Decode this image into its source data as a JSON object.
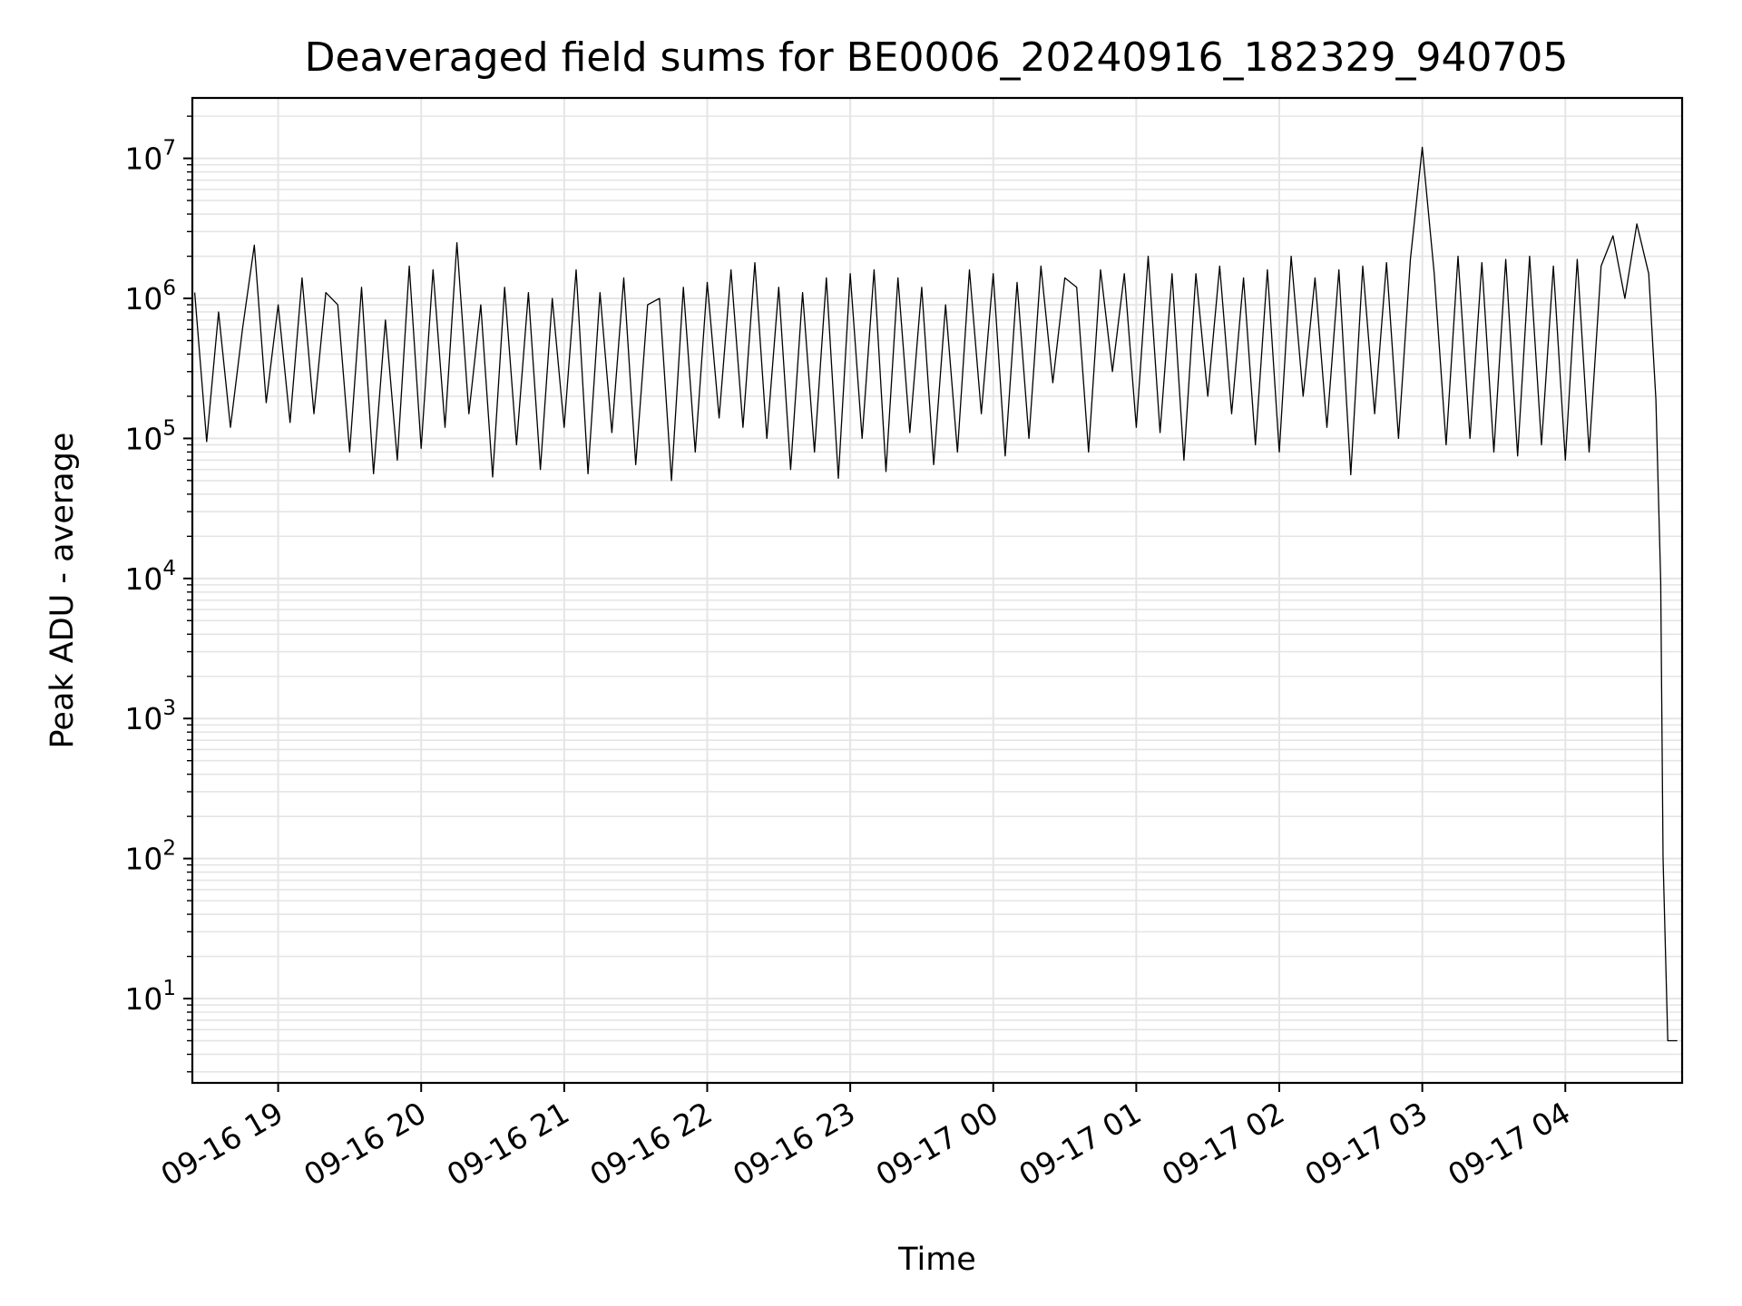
{
  "chart_data": {
    "type": "line",
    "title": "Deaveraged field sums for BE0006_20240916_182329_940705",
    "xlabel": "Time",
    "ylabel": "Peak ADU - average",
    "yscale": "log",
    "ylim": [
      2.5,
      27000000
    ],
    "xlim": [
      "2024-09-16 18:24",
      "2024-09-17 04:49"
    ],
    "grid": true,
    "line_color": "#000000",
    "grid_color": "#e5e5e5",
    "x_ticks": [
      "09-16 19",
      "09-16 20",
      "09-16 21",
      "09-16 22",
      "09-16 23",
      "09-17 00",
      "09-17 01",
      "09-17 02",
      "09-17 03",
      "09-17 04"
    ],
    "y_ticks": [
      {
        "base": "10",
        "exp": "1"
      },
      {
        "base": "10",
        "exp": "2"
      },
      {
        "base": "10",
        "exp": "3"
      },
      {
        "base": "10",
        "exp": "4"
      },
      {
        "base": "10",
        "exp": "5"
      },
      {
        "base": "10",
        "exp": "6"
      },
      {
        "base": "10",
        "exp": "7"
      }
    ],
    "series": [
      {
        "x": [
          "2024-09-16 18:25",
          "2024-09-16 18:30",
          "2024-09-16 18:35",
          "2024-09-16 18:40",
          "2024-09-16 18:45",
          "2024-09-16 18:50",
          "2024-09-16 18:55",
          "2024-09-16 19:00",
          "2024-09-16 19:05",
          "2024-09-16 19:10",
          "2024-09-16 19:15",
          "2024-09-16 19:20",
          "2024-09-16 19:25",
          "2024-09-16 19:30",
          "2024-09-16 19:35",
          "2024-09-16 19:40",
          "2024-09-16 19:45",
          "2024-09-16 19:50",
          "2024-09-16 19:55",
          "2024-09-16 20:00",
          "2024-09-16 20:05",
          "2024-09-16 20:10",
          "2024-09-16 20:15",
          "2024-09-16 20:20",
          "2024-09-16 20:25",
          "2024-09-16 20:30",
          "2024-09-16 20:35",
          "2024-09-16 20:40",
          "2024-09-16 20:45",
          "2024-09-16 20:50",
          "2024-09-16 20:55",
          "2024-09-16 21:00",
          "2024-09-16 21:05",
          "2024-09-16 21:10",
          "2024-09-16 21:15",
          "2024-09-16 21:20",
          "2024-09-16 21:25",
          "2024-09-16 21:30",
          "2024-09-16 21:35",
          "2024-09-16 21:40",
          "2024-09-16 21:45",
          "2024-09-16 21:50",
          "2024-09-16 21:55",
          "2024-09-16 22:00",
          "2024-09-16 22:05",
          "2024-09-16 22:10",
          "2024-09-16 22:15",
          "2024-09-16 22:20",
          "2024-09-16 22:25",
          "2024-09-16 22:30",
          "2024-09-16 22:35",
          "2024-09-16 22:40",
          "2024-09-16 22:45",
          "2024-09-16 22:50",
          "2024-09-16 22:55",
          "2024-09-16 23:00",
          "2024-09-16 23:05",
          "2024-09-16 23:10",
          "2024-09-16 23:15",
          "2024-09-16 23:20",
          "2024-09-16 23:25",
          "2024-09-16 23:30",
          "2024-09-16 23:35",
          "2024-09-16 23:40",
          "2024-09-16 23:45",
          "2024-09-16 23:50",
          "2024-09-16 23:55",
          "2024-09-17 00:00",
          "2024-09-17 00:05",
          "2024-09-17 00:10",
          "2024-09-17 00:15",
          "2024-09-17 00:20",
          "2024-09-17 00:25",
          "2024-09-17 00:30",
          "2024-09-17 00:35",
          "2024-09-17 00:40",
          "2024-09-17 00:45",
          "2024-09-17 00:50",
          "2024-09-17 00:55",
          "2024-09-17 01:00",
          "2024-09-17 01:05",
          "2024-09-17 01:10",
          "2024-09-17 01:15",
          "2024-09-17 01:20",
          "2024-09-17 01:25",
          "2024-09-17 01:30",
          "2024-09-17 01:35",
          "2024-09-17 01:40",
          "2024-09-17 01:45",
          "2024-09-17 01:50",
          "2024-09-17 01:55",
          "2024-09-17 02:00",
          "2024-09-17 02:05",
          "2024-09-17 02:10",
          "2024-09-17 02:15",
          "2024-09-17 02:20",
          "2024-09-17 02:25",
          "2024-09-17 02:30",
          "2024-09-17 02:35",
          "2024-09-17 02:40",
          "2024-09-17 02:45",
          "2024-09-17 02:50",
          "2024-09-17 02:55",
          "2024-09-17 03:00",
          "2024-09-17 03:05",
          "2024-09-17 03:10",
          "2024-09-17 03:15",
          "2024-09-17 03:20",
          "2024-09-17 03:25",
          "2024-09-17 03:30",
          "2024-09-17 03:35",
          "2024-09-17 03:40",
          "2024-09-17 03:45",
          "2024-09-17 03:50",
          "2024-09-17 03:55",
          "2024-09-17 04:00",
          "2024-09-17 04:05",
          "2024-09-17 04:10",
          "2024-09-17 04:15",
          "2024-09-17 04:20",
          "2024-09-17 04:25",
          "2024-09-17 04:30",
          "2024-09-17 04:35",
          "2024-09-17 04:38",
          "2024-09-17 04:40",
          "2024-09-17 04:41",
          "2024-09-17 04:43",
          "2024-09-17 04:45",
          "2024-09-17 04:47"
        ],
        "values": [
          1100000,
          95000,
          800000,
          120000,
          600000,
          2400000,
          180000,
          900000,
          130000,
          1400000,
          150000,
          1100000,
          900000,
          80000,
          1200000,
          56000,
          700000,
          70000,
          1700000,
          85000,
          1600000,
          120000,
          2500000,
          150000,
          900000,
          53000,
          1200000,
          90000,
          1100000,
          60000,
          1000000,
          120000,
          1600000,
          56000,
          1100000,
          110000,
          1400000,
          65000,
          900000,
          1000000,
          50000,
          1200000,
          80000,
          1300000,
          140000,
          1600000,
          120000,
          1800000,
          100000,
          1200000,
          60000,
          1100000,
          80000,
          1400000,
          52000,
          1500000,
          100000,
          1600000,
          58000,
          1400000,
          110000,
          1200000,
          65000,
          900000,
          80000,
          1600000,
          150000,
          1500000,
          75000,
          1300000,
          100000,
          1700000,
          250000,
          1400000,
          1200000,
          80000,
          1600000,
          300000,
          1500000,
          120000,
          2000000,
          110000,
          1500000,
          70000,
          1500000,
          200000,
          1700000,
          150000,
          1400000,
          90000,
          1600000,
          80000,
          2000000,
          200000,
          1400000,
          120000,
          1600000,
          55000,
          1700000,
          150000,
          1800000,
          100000,
          1900000,
          12000000,
          1500000,
          90000,
          2000000,
          100000,
          1800000,
          80000,
          1900000,
          75000,
          2000000,
          90000,
          1700000,
          70000,
          1900000,
          80000,
          1700000,
          2800000,
          1000000,
          3400000,
          1500000,
          190000,
          9500,
          100,
          5,
          5,
          5
        ]
      }
    ]
  }
}
